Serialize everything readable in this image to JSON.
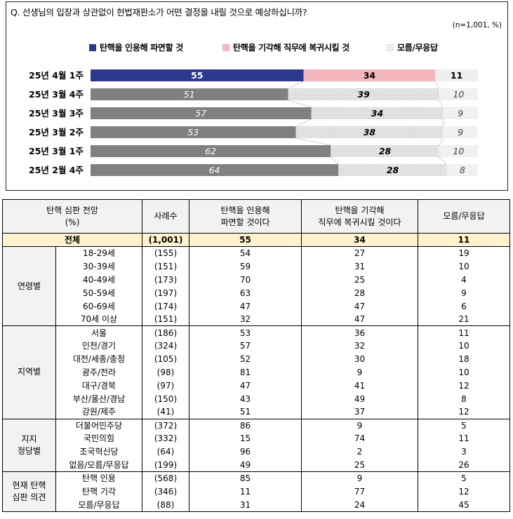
{
  "question": "Q. 선생님의 입장과 상관없이 헌법재판소가 어떤 결정을 내릴 것으로 예상하십니까?",
  "note": "(n=1,001, %)",
  "legend": [
    {
      "label": "탄핵을 인용해 파면할 것",
      "color": "#2b3a8c"
    },
    {
      "label": "탄핵을 기각해 직무에 복귀시킬 것",
      "color": "#f4b6bd"
    },
    {
      "label": "모름/무응답",
      "color": "#f0f0f0"
    }
  ],
  "chart_data": {
    "type": "bar",
    "orientation": "horizontal",
    "stacked": true,
    "categories": [
      "25년 4월 1주",
      "25년 3월 4주",
      "25년 3월 3주",
      "25년 3월 2주",
      "25년 3월 1주",
      "25년 2월 4주"
    ],
    "series": [
      {
        "name": "탄핵을 인용해 파면할 것",
        "values": [
          55,
          51,
          57,
          53,
          62,
          64
        ]
      },
      {
        "name": "탄핵을 기각해 직무에 복귀시킬 것",
        "values": [
          34,
          39,
          34,
          38,
          28,
          28
        ]
      },
      {
        "name": "모름/무응답",
        "values": [
          11,
          10,
          9,
          9,
          10,
          8
        ]
      }
    ],
    "highlight_first_row": true,
    "colors": {
      "current_accept": "#2b3a8c",
      "current_reject": "#f4b6bd",
      "current_unknown": "#eeeeee",
      "past_accept": "#808080",
      "past_reject": "#d9d9d9",
      "past_unknown": "#f2f2f2"
    }
  },
  "table": {
    "headers": [
      "탄핵 심판 전망\n(%)",
      "사례수",
      "탄핵을 인용해\n파면할 것이다",
      "탄핵을 기각해\n직무에 복귀시킬 것이다",
      "모름/무응답"
    ],
    "total": {
      "label": "전체",
      "n": "(1,001)",
      "v1": "55",
      "v2": "34",
      "v3": "11"
    },
    "groups": [
      {
        "name": "연령별",
        "rows": [
          {
            "label": "18-29세",
            "n": "(155)",
            "v1": "54",
            "v2": "27",
            "v3": "19"
          },
          {
            "label": "30-39세",
            "n": "(151)",
            "v1": "59",
            "v2": "31",
            "v3": "10"
          },
          {
            "label": "40-49세",
            "n": "(173)",
            "v1": "70",
            "v2": "25",
            "v3": "4"
          },
          {
            "label": "50-59세",
            "n": "(197)",
            "v1": "63",
            "v2": "28",
            "v3": "9"
          },
          {
            "label": "60-69세",
            "n": "(174)",
            "v1": "47",
            "v2": "47",
            "v3": "6"
          },
          {
            "label": "70세 이상",
            "n": "(151)",
            "v1": "32",
            "v2": "47",
            "v3": "21"
          }
        ]
      },
      {
        "name": "지역별",
        "rows": [
          {
            "label": "서울",
            "n": "(186)",
            "v1": "53",
            "v2": "36",
            "v3": "11"
          },
          {
            "label": "인천/경기",
            "n": "(324)",
            "v1": "57",
            "v2": "32",
            "v3": "10"
          },
          {
            "label": "대전/세종/충청",
            "n": "(105)",
            "v1": "52",
            "v2": "30",
            "v3": "18"
          },
          {
            "label": "광주/전라",
            "n": "(98)",
            "v1": "81",
            "v2": "9",
            "v3": "10"
          },
          {
            "label": "대구/경북",
            "n": "(97)",
            "v1": "47",
            "v2": "41",
            "v3": "12"
          },
          {
            "label": "부산/울산/경남",
            "n": "(150)",
            "v1": "43",
            "v2": "49",
            "v3": "8"
          },
          {
            "label": "강원/제주",
            "n": "(41)",
            "v1": "51",
            "v2": "37",
            "v3": "12"
          }
        ]
      },
      {
        "name": "지지\n정당별",
        "rows": [
          {
            "label": "더불어민주당",
            "n": "(372)",
            "v1": "86",
            "v2": "9",
            "v3": "5"
          },
          {
            "label": "국민의힘",
            "n": "(332)",
            "v1": "15",
            "v2": "74",
            "v3": "11"
          },
          {
            "label": "조국혁신당",
            "n": "(64)",
            "v1": "96",
            "v2": "2",
            "v3": "3"
          },
          {
            "label": "없음/모름/무응답",
            "n": "(199)",
            "v1": "49",
            "v2": "25",
            "v3": "26"
          }
        ]
      },
      {
        "name": "현재 탄핵\n심판 의견",
        "rows": [
          {
            "label": "탄핵 인용",
            "n": "(568)",
            "v1": "85",
            "v2": "9",
            "v3": "5"
          },
          {
            "label": "탄핵 기각",
            "n": "(346)",
            "v1": "11",
            "v2": "77",
            "v3": "12"
          },
          {
            "label": "모름/무응답",
            "n": "(88)",
            "v1": "31",
            "v2": "24",
            "v3": "45"
          }
        ]
      }
    ]
  }
}
